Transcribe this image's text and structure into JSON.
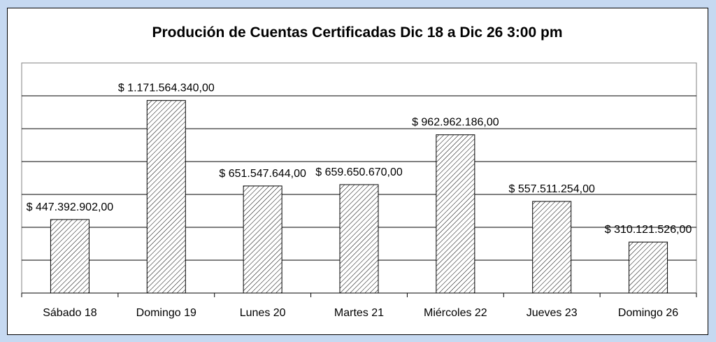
{
  "chart_data": {
    "type": "bar",
    "title": "Produción de Cuentas Certificadas Dic 18 a Dic 26 3:00 pm",
    "xlabel": "",
    "ylabel": "",
    "categories": [
      "Sábado 18",
      "Domingo 19",
      "Lunes 20",
      "Martes 21",
      "Miércoles 22",
      "Jueves 23",
      "Domingo 26"
    ],
    "values": [
      447392902,
      1171564340,
      651547644,
      659650670,
      962962186,
      557511254,
      310121526
    ],
    "data_labels": [
      "$ 447.392.902,00",
      "$ 1.171.564.340,00",
      "$ 651.547.644,00",
      "$ 659.650.670,00",
      "$ 962.962.186,00",
      "$ 557.511.254,00",
      "$ 310.121.526,00"
    ],
    "ylim": [
      0,
      1400000000
    ],
    "gridlines": true,
    "legend": "none",
    "bar_fill": "diagonal-hatch",
    "colors": {
      "background": "#ffffff",
      "frame": "#c6d9f1",
      "bar_stroke": "#000000",
      "grid": "#000000"
    }
  }
}
